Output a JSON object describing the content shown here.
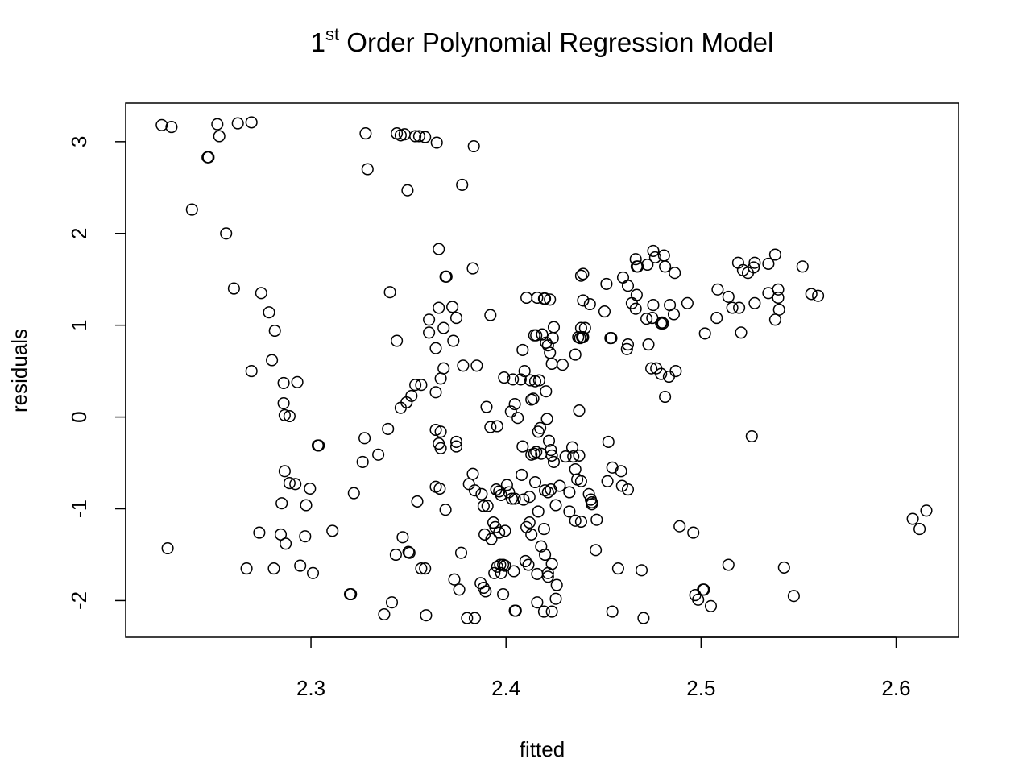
{
  "chart_data": {
    "type": "scatter",
    "title": {
      "prefix": "1",
      "superscript": "st",
      "text": " Order Polynomial Regression Model"
    },
    "xlabel": "fitted",
    "ylabel": "residuals",
    "xlim": [
      2.205,
      2.632
    ],
    "ylim": [
      -2.4,
      3.42
    ],
    "x_ticks": [
      2.3,
      2.4,
      2.5,
      2.6
    ],
    "x_tick_labels": [
      "2.3",
      "2.4",
      "2.5",
      "2.6"
    ],
    "y_ticks": [
      -2,
      -1,
      0,
      1,
      2,
      3
    ],
    "y_tick_labels": [
      "-2",
      "-1",
      "0",
      "1",
      "2",
      "3"
    ],
    "grid": false,
    "legend": "none",
    "marker": "open-circle",
    "colors": {
      "marker": "#000000",
      "axis": "#000000",
      "background": "#ffffff"
    },
    "points": [
      [
        2.2235,
        3.18
      ],
      [
        2.2285,
        3.16
      ],
      [
        2.252,
        3.19
      ],
      [
        2.2625,
        3.2
      ],
      [
        2.2695,
        3.21
      ],
      [
        2.253,
        3.06
      ],
      [
        2.247,
        2.83
      ],
      [
        2.2475,
        2.83
      ],
      [
        2.239,
        2.26
      ],
      [
        2.2565,
        2.0
      ],
      [
        2.2265,
        -1.43
      ],
      [
        2.2605,
        1.4
      ],
      [
        2.2745,
        1.35
      ],
      [
        2.2785,
        1.14
      ],
      [
        2.2815,
        0.94
      ],
      [
        2.28,
        0.62
      ],
      [
        2.2695,
        0.5
      ],
      [
        2.286,
        0.37
      ],
      [
        2.293,
        0.38
      ],
      [
        2.286,
        0.15
      ],
      [
        2.2865,
        0.02
      ],
      [
        2.289,
        0.01
      ],
      [
        2.3035,
        -0.31
      ],
      [
        2.304,
        -0.31
      ],
      [
        2.2865,
        -0.59
      ],
      [
        2.289,
        -0.72
      ],
      [
        2.292,
        -0.73
      ],
      [
        2.2995,
        -0.78
      ],
      [
        2.285,
        -0.94
      ],
      [
        2.2975,
        -0.96
      ],
      [
        2.2735,
        -1.26
      ],
      [
        2.2845,
        -1.28
      ],
      [
        2.297,
        -1.3
      ],
      [
        2.287,
        -1.38
      ],
      [
        2.311,
        -1.24
      ],
      [
        2.267,
        -1.65
      ],
      [
        2.281,
        -1.65
      ],
      [
        2.2945,
        -1.62
      ],
      [
        2.301,
        -1.7
      ],
      [
        2.32,
        -1.93
      ],
      [
        2.3205,
        -1.93
      ],
      [
        2.322,
        -0.83
      ],
      [
        2.3265,
        -0.49
      ],
      [
        2.3275,
        -0.23
      ],
      [
        2.3345,
        -0.41
      ],
      [
        2.3395,
        -0.13
      ],
      [
        2.3405,
        1.36
      ],
      [
        2.344,
        0.83
      ],
      [
        2.346,
        0.1
      ],
      [
        2.349,
        0.16
      ],
      [
        2.3515,
        0.23
      ],
      [
        2.3535,
        0.35
      ],
      [
        2.3565,
        0.35
      ],
      [
        2.3545,
        -0.92
      ],
      [
        2.347,
        -1.31
      ],
      [
        2.35,
        -1.47
      ],
      [
        2.3505,
        -1.48
      ],
      [
        2.3435,
        -1.5
      ],
      [
        2.3565,
        -1.65
      ],
      [
        2.3585,
        -1.65
      ],
      [
        2.3415,
        -2.02
      ],
      [
        2.3375,
        -2.15
      ],
      [
        2.359,
        -2.16
      ],
      [
        2.328,
        3.09
      ],
      [
        2.329,
        2.7
      ],
      [
        2.344,
        3.09
      ],
      [
        2.346,
        3.07
      ],
      [
        2.348,
        3.08
      ],
      [
        2.3535,
        3.06
      ],
      [
        2.3555,
        3.06
      ],
      [
        2.3585,
        3.05
      ],
      [
        2.3645,
        2.99
      ],
      [
        2.3835,
        2.95
      ],
      [
        2.3495,
        2.47
      ],
      [
        2.3775,
        2.53
      ],
      [
        2.3655,
        1.83
      ],
      [
        2.369,
        1.53
      ],
      [
        2.3695,
        1.53
      ],
      [
        2.383,
        1.62
      ],
      [
        2.3655,
        1.19
      ],
      [
        2.3725,
        1.2
      ],
      [
        2.3745,
        1.08
      ],
      [
        2.3605,
        1.06
      ],
      [
        2.368,
        0.97
      ],
      [
        2.3605,
        0.92
      ],
      [
        2.373,
        0.83
      ],
      [
        2.364,
        0.75
      ],
      [
        2.378,
        0.56
      ],
      [
        2.385,
        0.56
      ],
      [
        2.368,
        0.53
      ],
      [
        2.3665,
        0.42
      ],
      [
        2.364,
        0.27
      ],
      [
        2.364,
        -0.14
      ],
      [
        2.3665,
        -0.16
      ],
      [
        2.3745,
        -0.27
      ],
      [
        2.3655,
        -0.29
      ],
      [
        2.3665,
        -0.34
      ],
      [
        2.3745,
        -0.32
      ],
      [
        2.364,
        -0.76
      ],
      [
        2.366,
        -0.78
      ],
      [
        2.369,
        -1.01
      ],
      [
        2.3735,
        -1.77
      ],
      [
        2.376,
        -1.88
      ],
      [
        2.377,
        -1.48
      ],
      [
        2.38,
        -2.19
      ],
      [
        2.384,
        -2.19
      ],
      [
        2.383,
        -0.62
      ],
      [
        2.381,
        -0.73
      ],
      [
        2.384,
        -0.8
      ],
      [
        2.3875,
        -0.84
      ],
      [
        2.3885,
        -0.97
      ],
      [
        2.3905,
        -0.97
      ],
      [
        2.39,
        0.11
      ],
      [
        2.392,
        -0.11
      ],
      [
        2.3955,
        -0.1
      ],
      [
        2.392,
        1.11
      ],
      [
        2.395,
        -0.79
      ],
      [
        2.3965,
        -0.81
      ],
      [
        2.3975,
        -0.85
      ],
      [
        2.389,
        -1.28
      ],
      [
        2.3925,
        -1.33
      ],
      [
        2.3935,
        -1.15
      ],
      [
        2.3945,
        -1.2
      ],
      [
        2.3965,
        -1.26
      ],
      [
        2.3995,
        -1.24
      ],
      [
        2.387,
        -1.81
      ],
      [
        2.3885,
        -1.86
      ],
      [
        2.3895,
        -1.9
      ],
      [
        2.394,
        -1.7
      ],
      [
        2.3955,
        -1.63
      ],
      [
        2.397,
        -1.61
      ],
      [
        2.3985,
        -1.61
      ],
      [
        2.3995,
        -1.62
      ],
      [
        2.3985,
        -1.93
      ],
      [
        2.3975,
        -1.7
      ],
      [
        2.399,
        0.43
      ],
      [
        2.4015,
        -0.82
      ],
      [
        2.4005,
        -0.74
      ],
      [
        2.403,
        -0.89
      ],
      [
        2.4045,
        -0.89
      ],
      [
        2.4025,
        0.06
      ],
      [
        2.4035,
        0.41
      ],
      [
        2.4045,
        0.14
      ],
      [
        2.406,
        -0.01
      ],
      [
        2.4075,
        0.41
      ],
      [
        2.4085,
        0.73
      ],
      [
        2.4095,
        0.5
      ],
      [
        2.4085,
        -0.32
      ],
      [
        2.408,
        -0.63
      ],
      [
        2.409,
        -0.9
      ],
      [
        2.4045,
        -2.11
      ],
      [
        2.405,
        -2.11
      ],
      [
        2.404,
        -1.68
      ],
      [
        2.41,
        -1.57
      ],
      [
        2.4115,
        -1.61
      ],
      [
        2.412,
        -1.15
      ],
      [
        2.4105,
        -1.2
      ],
      [
        2.413,
        -1.28
      ],
      [
        2.412,
        -0.87
      ],
      [
        2.415,
        -0.71
      ],
      [
        2.4105,
        1.3
      ],
      [
        2.4145,
        0.89
      ],
      [
        2.4155,
        0.89
      ],
      [
        2.413,
        0.19
      ],
      [
        2.414,
        0.2
      ],
      [
        2.4125,
        0.4
      ],
      [
        2.415,
        0.39
      ],
      [
        2.417,
        0.4
      ],
      [
        2.413,
        -0.41
      ],
      [
        2.4145,
        -0.4
      ],
      [
        2.4155,
        -0.38
      ],
      [
        2.418,
        -0.4
      ],
      [
        2.4165,
        -0.16
      ],
      [
        2.4175,
        -0.12
      ],
      [
        2.4185,
        0.9
      ],
      [
        2.416,
        1.3
      ],
      [
        2.4195,
        1.29
      ],
      [
        2.42,
        1.29
      ],
      [
        2.4225,
        1.28
      ],
      [
        2.4205,
        0.81
      ],
      [
        2.4215,
        0.78
      ],
      [
        2.4225,
        0.7
      ],
      [
        2.4235,
        0.58
      ],
      [
        2.424,
        0.86
      ],
      [
        2.4245,
        0.98
      ],
      [
        2.4205,
        0.28
      ],
      [
        2.421,
        -0.02
      ],
      [
        2.422,
        -0.26
      ],
      [
        2.423,
        -0.36
      ],
      [
        2.4235,
        -0.42
      ],
      [
        2.4245,
        -0.49
      ],
      [
        2.42,
        -0.8
      ],
      [
        2.4215,
        -0.82
      ],
      [
        2.423,
        -0.79
      ],
      [
        2.4255,
        -0.96
      ],
      [
        2.4165,
        -1.03
      ],
      [
        2.4195,
        -1.22
      ],
      [
        2.418,
        -1.41
      ],
      [
        2.42,
        -1.5
      ],
      [
        2.4215,
        -1.7
      ],
      [
        2.4235,
        -1.6
      ],
      [
        2.416,
        -1.71
      ],
      [
        2.416,
        -2.02
      ],
      [
        2.4195,
        -2.12
      ],
      [
        2.4235,
        -2.12
      ],
      [
        2.4215,
        -1.74
      ],
      [
        2.4255,
        -1.98
      ],
      [
        2.426,
        -1.83
      ],
      [
        2.4275,
        -0.75
      ],
      [
        2.429,
        0.57
      ],
      [
        2.4305,
        -0.43
      ],
      [
        2.4325,
        -0.82
      ],
      [
        2.4345,
        -0.43
      ],
      [
        2.434,
        -0.33
      ],
      [
        2.4355,
        -0.57
      ],
      [
        2.4365,
        -0.68
      ],
      [
        2.4375,
        -0.42
      ],
      [
        2.4385,
        -0.7
      ],
      [
        2.4325,
        -1.03
      ],
      [
        2.4355,
        -1.13
      ],
      [
        2.4385,
        -1.14
      ],
      [
        2.4355,
        0.68
      ],
      [
        2.437,
        0.87
      ],
      [
        2.438,
        0.86
      ],
      [
        2.4385,
        0.97
      ],
      [
        2.439,
        0.87
      ],
      [
        2.4395,
        0.87
      ],
      [
        2.4405,
        0.97
      ],
      [
        2.4385,
        1.54
      ],
      [
        2.4395,
        1.56
      ],
      [
        2.4395,
        1.27
      ],
      [
        2.443,
        1.23
      ],
      [
        2.4375,
        0.07
      ],
      [
        2.4425,
        -0.84
      ],
      [
        2.4435,
        -0.9
      ],
      [
        2.444,
        -0.95
      ],
      [
        2.444,
        -0.93
      ],
      [
        2.446,
        -1.45
      ],
      [
        2.4465,
        -1.12
      ],
      [
        2.4505,
        1.15
      ],
      [
        2.4515,
        1.45
      ],
      [
        2.4535,
        0.86
      ],
      [
        2.454,
        0.86
      ],
      [
        2.4525,
        -0.27
      ],
      [
        2.4545,
        -0.55
      ],
      [
        2.452,
        -0.7
      ],
      [
        2.4545,
        -2.12
      ],
      [
        2.4575,
        -1.65
      ],
      [
        2.459,
        -0.59
      ],
      [
        2.4595,
        -0.75
      ],
      [
        2.46,
        1.52
      ],
      [
        2.4625,
        1.43
      ],
      [
        2.462,
        0.74
      ],
      [
        2.4625,
        0.79
      ],
      [
        2.4625,
        -0.79
      ],
      [
        2.4645,
        1.24
      ],
      [
        2.4665,
        1.18
      ],
      [
        2.467,
        1.33
      ],
      [
        2.4665,
        1.72
      ],
      [
        2.467,
        1.64
      ],
      [
        2.4675,
        1.64
      ],
      [
        2.4695,
        -1.67
      ],
      [
        2.4705,
        -2.19
      ],
      [
        2.472,
        1.07
      ],
      [
        2.4725,
        1.66
      ],
      [
        2.473,
        0.79
      ],
      [
        2.4745,
        0.53
      ],
      [
        2.475,
        1.08
      ],
      [
        2.4755,
        1.22
      ],
      [
        2.4755,
        1.81
      ],
      [
        2.4765,
        1.74
      ],
      [
        2.477,
        0.53
      ],
      [
        2.4795,
        0.47
      ],
      [
        2.4795,
        1.02
      ],
      [
        2.48,
        1.03
      ],
      [
        2.4805,
        1.02
      ],
      [
        2.481,
        1.76
      ],
      [
        2.4815,
        1.64
      ],
      [
        2.4815,
        0.22
      ],
      [
        2.4835,
        0.44
      ],
      [
        2.484,
        1.22
      ],
      [
        2.486,
        1.12
      ],
      [
        2.4865,
        1.57
      ],
      [
        2.487,
        0.5
      ],
      [
        2.489,
        -1.19
      ],
      [
        2.493,
        1.24
      ],
      [
        2.496,
        -1.26
      ],
      [
        2.497,
        -1.94
      ],
      [
        2.4985,
        -1.99
      ],
      [
        2.501,
        -1.88
      ],
      [
        2.5015,
        -1.88
      ],
      [
        2.502,
        0.91
      ],
      [
        2.505,
        -2.06
      ],
      [
        2.508,
        1.08
      ],
      [
        2.5085,
        1.39
      ],
      [
        2.514,
        1.31
      ],
      [
        2.514,
        -1.61
      ],
      [
        2.516,
        1.19
      ],
      [
        2.519,
        1.68
      ],
      [
        2.5195,
        1.19
      ],
      [
        2.5205,
        0.92
      ],
      [
        2.5215,
        1.6
      ],
      [
        2.524,
        1.57
      ],
      [
        2.526,
        -0.21
      ],
      [
        2.527,
        1.63
      ],
      [
        2.5275,
        1.68
      ],
      [
        2.5275,
        1.24
      ],
      [
        2.5345,
        1.67
      ],
      [
        2.5345,
        1.35
      ],
      [
        2.538,
        1.77
      ],
      [
        2.538,
        1.06
      ],
      [
        2.5395,
        1.39
      ],
      [
        2.5395,
        1.3
      ],
      [
        2.54,
        1.17
      ],
      [
        2.5425,
        -1.64
      ],
      [
        2.5475,
        -1.95
      ],
      [
        2.552,
        1.64
      ],
      [
        2.5565,
        1.34
      ],
      [
        2.56,
        1.32
      ],
      [
        2.6085,
        -1.11
      ],
      [
        2.612,
        -1.22
      ],
      [
        2.6155,
        -1.02
      ]
    ]
  }
}
